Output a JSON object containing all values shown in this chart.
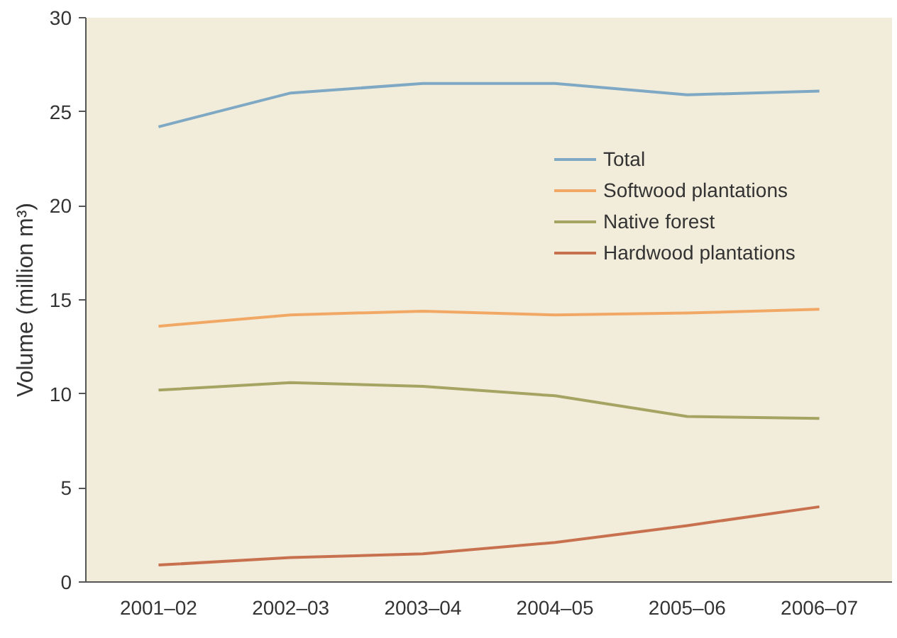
{
  "chart_data": {
    "type": "line",
    "ylabel": "Volume (million m³)",
    "categories": [
      "2001–02",
      "2002–03",
      "2003–04",
      "2004–05",
      "2005–06",
      "2006–07"
    ],
    "ylim": [
      0,
      30
    ],
    "yticks": [
      0,
      5,
      10,
      15,
      20,
      25,
      30
    ],
    "grid": false,
    "legend": "right",
    "series": [
      {
        "name": "Total",
        "color": "#7fa8c4",
        "values": [
          24.2,
          26.0,
          26.5,
          26.5,
          25.9,
          26.1
        ]
      },
      {
        "name": "Softwood plantations",
        "color": "#f2a865",
        "values": [
          13.6,
          14.2,
          14.4,
          14.2,
          14.3,
          14.5
        ]
      },
      {
        "name": "Native forest",
        "color": "#a6a462",
        "values": [
          10.2,
          10.6,
          10.4,
          9.9,
          8.8,
          8.7
        ]
      },
      {
        "name": "Hardwood plantations",
        "color": "#c8714f",
        "values": [
          0.9,
          1.3,
          1.5,
          2.1,
          3.0,
          4.0
        ]
      }
    ]
  }
}
